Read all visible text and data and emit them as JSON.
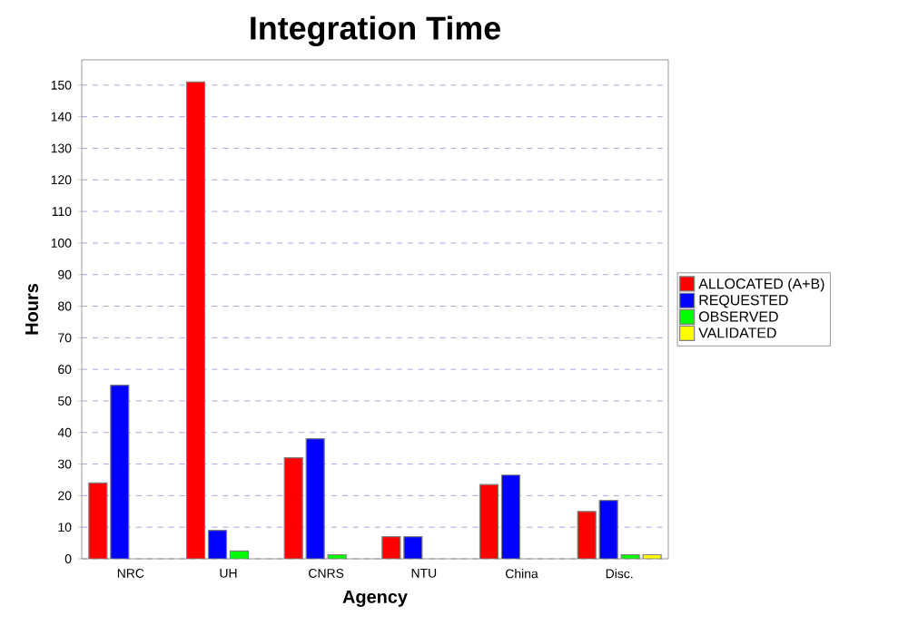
{
  "chart_data": {
    "type": "bar",
    "title": "Integration Time",
    "xlabel": "Agency",
    "ylabel": "Hours",
    "categories": [
      "NRC",
      "UH",
      "CNRS",
      "NTU",
      "China",
      "Disc."
    ],
    "series": [
      {
        "name": "ALLOCATED (A+B)",
        "color": "#ff0000",
        "values": [
          24,
          151,
          32,
          7,
          23.5,
          15
        ]
      },
      {
        "name": "REQUESTED",
        "color": "#0000ff",
        "values": [
          55,
          9,
          38,
          7,
          26.5,
          18.5
        ]
      },
      {
        "name": "OBSERVED",
        "color": "#00ff00",
        "values": [
          null,
          2.5,
          1.3,
          null,
          null,
          1.3
        ]
      },
      {
        "name": "VALIDATED",
        "color": "#ffff00",
        "values": [
          null,
          null,
          null,
          null,
          null,
          1.3
        ]
      }
    ],
    "ylim": [
      0,
      158
    ],
    "yticks": [
      0,
      10,
      20,
      30,
      40,
      50,
      60,
      70,
      80,
      90,
      100,
      110,
      120,
      130,
      140,
      150
    ],
    "grid": "y",
    "legend": "right"
  }
}
